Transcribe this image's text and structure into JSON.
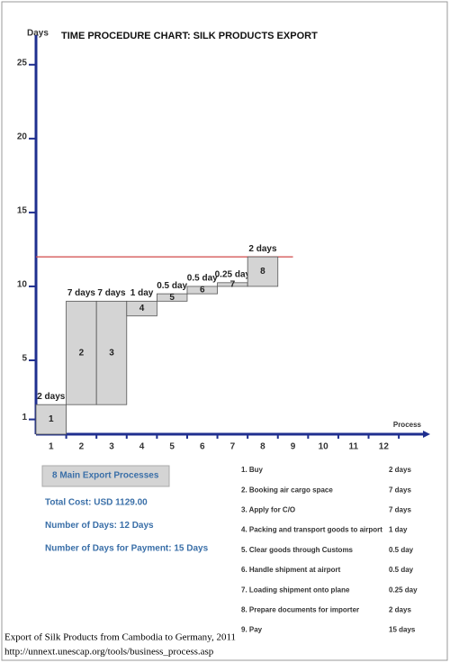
{
  "chart_data": {
    "type": "gantt",
    "title": "TIME PROCEDURE CHART: SILK PRODUCTS EXPORT",
    "y_label": "Days",
    "x_label": "Process",
    "x": [
      1,
      2,
      3,
      4,
      5,
      6,
      7,
      8
    ],
    "starts": [
      0,
      2,
      2,
      8,
      9,
      9.5,
      10,
      10
    ],
    "values": [
      2,
      7,
      7,
      1,
      0.5,
      0.5,
      0.25,
      2
    ],
    "value_labels": [
      "2 days",
      "7 days",
      "7 days",
      "1 day",
      "0.5 day",
      "0.5 day",
      "0.25 day",
      "2 days"
    ],
    "color": "#d4d4d4",
    "total_line": 12,
    "line_color": "#d04848",
    "axis_color": "#1f2f8f",
    "ylim": [
      0,
      27
    ],
    "yticks": [
      1,
      5,
      10,
      15,
      20,
      25
    ],
    "xlim": [
      0.5,
      13.3
    ],
    "xticks": [
      1,
      2,
      3,
      4,
      5,
      6,
      7,
      8,
      9,
      10,
      11,
      12
    ]
  },
  "summary": {
    "box": "8 Main Export Processes",
    "lines": [
      "Total Cost: USD 1129.00",
      "Number of Days: 12 Days",
      "Number of Days for Payment: 15 Days"
    ]
  },
  "processes": [
    {
      "name": "1.  Buy",
      "duration": "2 days"
    },
    {
      "name": "2. Booking air cargo space",
      "duration": "7 days"
    },
    {
      "name": "3. Apply for C/O",
      "duration": "7 days"
    },
    {
      "name": "4. Packing and transport goods to airport",
      "duration": "1 day"
    },
    {
      "name": "5. Clear goods through Customs",
      "duration": "0.5 day"
    },
    {
      "name": "6. Handle shipment at airport",
      "duration": "0.5 day"
    },
    {
      "name": "7. Loading shipment onto plane",
      "duration": "0.25 day"
    },
    {
      "name": "8. Prepare documents for importer",
      "duration": "2 days"
    },
    {
      "name": "9. Pay",
      "duration": "15 days"
    }
  ],
  "caption": [
    "Export of Silk Products from Cambodia to Germany, 2011",
    "http://unnext.unescap.org/tools/business_process.asp"
  ]
}
